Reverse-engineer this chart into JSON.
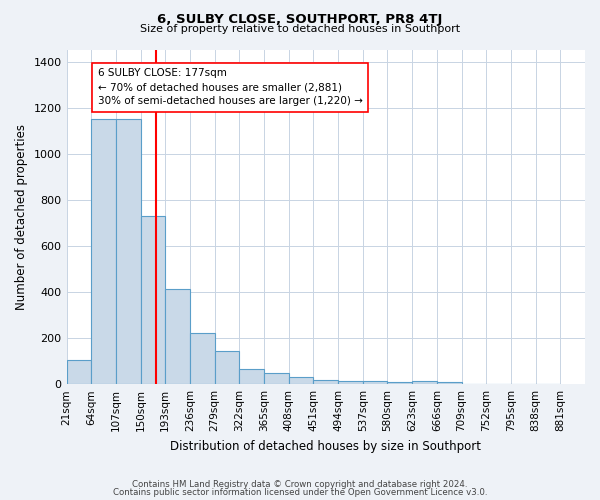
{
  "title": "6, SULBY CLOSE, SOUTHPORT, PR8 4TJ",
  "subtitle": "Size of property relative to detached houses in Southport",
  "xlabel": "Distribution of detached houses by size in Southport",
  "ylabel": "Number of detached properties",
  "bin_edges": [
    21,
    64,
    107,
    150,
    193,
    236,
    279,
    322,
    365,
    408,
    451,
    494,
    537,
    580,
    623,
    666,
    709,
    752,
    795,
    838,
    881
  ],
  "bar_heights": [
    107,
    1150,
    1150,
    730,
    415,
    220,
    145,
    65,
    50,
    30,
    20,
    15,
    15,
    10,
    15,
    10,
    0,
    0,
    0,
    0
  ],
  "bar_color": "#c9d9e8",
  "bar_edge_color": "#5a9ec9",
  "property_line_x": 177,
  "property_line_color": "red",
  "annotation_line1": "6 SULBY CLOSE: 177sqm",
  "annotation_line2": "← 70% of detached houses are smaller (2,881)",
  "annotation_line3": "30% of semi-detached houses are larger (1,220) →",
  "annotation_box_color": "white",
  "annotation_box_edge_color": "red",
  "ylim": [
    0,
    1450
  ],
  "yticks": [
    0,
    200,
    400,
    600,
    800,
    1000,
    1200,
    1400
  ],
  "bg_color": "#eef2f7",
  "plot_bg_color": "white",
  "grid_color": "#c8d4e3",
  "footer_line1": "Contains HM Land Registry data © Crown copyright and database right 2024.",
  "footer_line2": "Contains public sector information licensed under the Open Government Licence v3.0."
}
